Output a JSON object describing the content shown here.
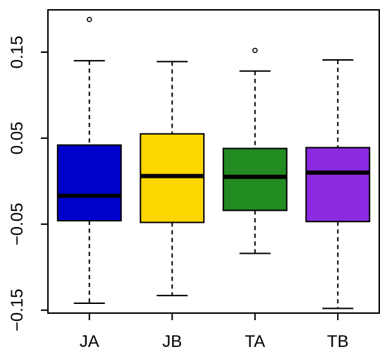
{
  "chart_data": {
    "type": "boxplot",
    "title": "",
    "xlabel": "",
    "ylabel": "",
    "ylim": [
      -0.16,
      0.2
    ],
    "yticks": [
      -0.15,
      -0.05,
      0.05,
      0.15
    ],
    "ytick_labels": [
      "−0.15",
      "−0.05",
      "0.05",
      "0.15"
    ],
    "categories": [
      "JA",
      "JB",
      "TA",
      "TB"
    ],
    "boxes": [
      {
        "label": "JA",
        "color": "#0000cd",
        "whisker_low": -0.142,
        "q1": -0.046,
        "median": -0.017,
        "q3": 0.042,
        "whisker_high": 0.14,
        "outliers": [
          0.188
        ]
      },
      {
        "label": "JB",
        "color": "#ffd700",
        "whisker_low": -0.133,
        "q1": -0.048,
        "median": 0.006,
        "q3": 0.055,
        "whisker_high": 0.139,
        "outliers": []
      },
      {
        "label": "TA",
        "color": "#228b22",
        "whisker_low": -0.084,
        "q1": -0.034,
        "median": 0.005,
        "q3": 0.038,
        "whisker_high": 0.128,
        "outliers": [
          0.152
        ]
      },
      {
        "label": "TB",
        "color": "#8a2be2",
        "whisker_low": -0.148,
        "q1": -0.047,
        "median": 0.01,
        "q3": 0.039,
        "whisker_high": 0.141,
        "outliers": []
      }
    ],
    "grid": false,
    "legend": "none"
  }
}
